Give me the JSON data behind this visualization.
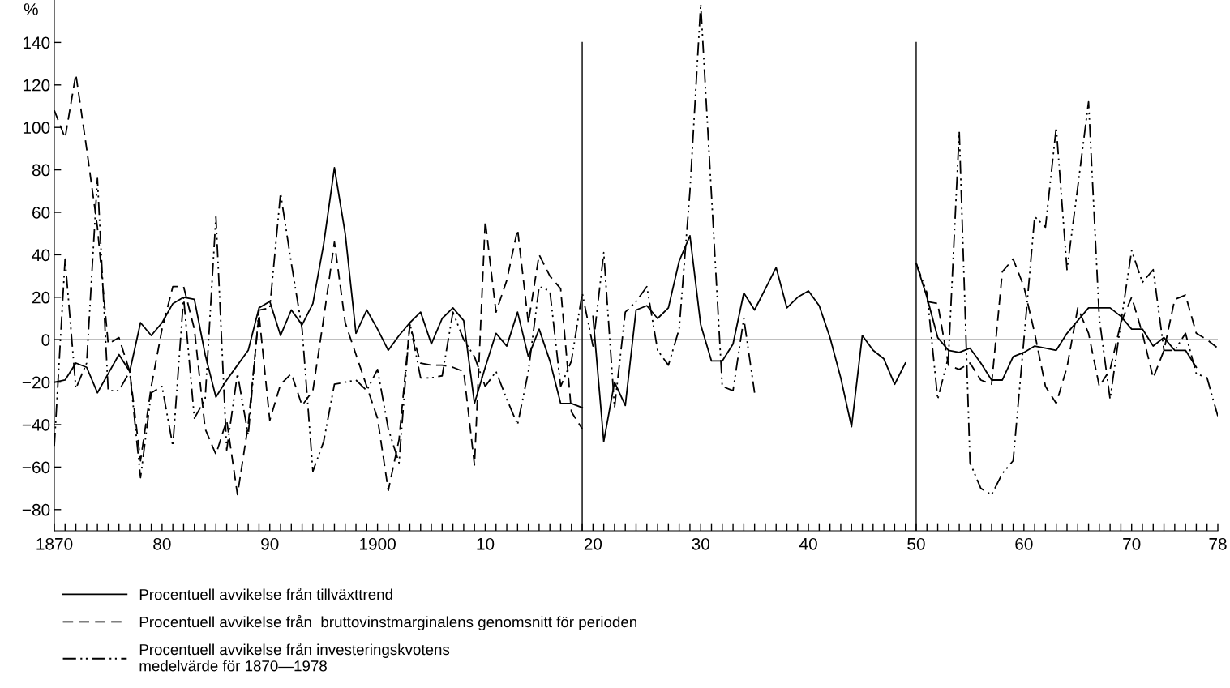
{
  "chart_data": {
    "type": "line",
    "ylabel": "%",
    "xlim": [
      1870,
      1978
    ],
    "ylim": [
      -90,
      160
    ],
    "yticks": [
      {
        "value": -80,
        "label": "−80"
      },
      {
        "value": -60,
        "label": "−60"
      },
      {
        "value": -40,
        "label": "−40"
      },
      {
        "value": -20,
        "label": "−20"
      },
      0,
      20,
      40,
      60,
      80,
      100,
      120,
      140
    ],
    "xticks": [
      1870,
      {
        "value": 1871,
        "label": null
      },
      {
        "value": 1872,
        "label": null
      },
      {
        "value": 1873,
        "label": null
      },
      {
        "value": 1874,
        "label": null
      },
      {
        "value": 1875,
        "label": null
      },
      {
        "value": 1876,
        "label": null
      },
      {
        "value": 1877,
        "label": null
      },
      {
        "value": 1878,
        "label": null
      },
      {
        "value": 1879,
        "label": null
      },
      {
        "value": 1880,
        "label": "80"
      },
      {
        "value": 1881,
        "label": null
      },
      {
        "value": 1882,
        "label": null
      },
      {
        "value": 1883,
        "label": null
      },
      {
        "value": 1884,
        "label": null
      },
      {
        "value": 1885,
        "label": null
      },
      {
        "value": 1886,
        "label": null
      },
      {
        "value": 1887,
        "label": null
      },
      {
        "value": 1888,
        "label": null
      },
      {
        "value": 1889,
        "label": null
      },
      {
        "value": 1890,
        "label": "90"
      },
      {
        "value": 1891,
        "label": null
      },
      {
        "value": 1892,
        "label": null
      },
      {
        "value": 1893,
        "label": null
      },
      {
        "value": 1894,
        "label": null
      },
      {
        "value": 1895,
        "label": null
      },
      {
        "value": 1896,
        "label": null
      },
      {
        "value": 1897,
        "label": null
      },
      {
        "value": 1898,
        "label": null
      },
      {
        "value": 1899,
        "label": null
      },
      1900,
      {
        "value": 1901,
        "label": null
      },
      {
        "value": 1902,
        "label": null
      },
      {
        "value": 1903,
        "label": null
      },
      {
        "value": 1904,
        "label": null
      },
      {
        "value": 1905,
        "label": null
      },
      {
        "value": 1906,
        "label": null
      },
      {
        "value": 1907,
        "label": null
      },
      {
        "value": 1908,
        "label": null
      },
      {
        "value": 1909,
        "label": null
      },
      {
        "value": 1910,
        "label": "10"
      },
      {
        "value": 1911,
        "label": null
      },
      {
        "value": 1912,
        "label": null
      },
      {
        "value": 1913,
        "label": null
      },
      {
        "value": 1914,
        "label": null
      },
      {
        "value": 1915,
        "label": null
      },
      {
        "value": 1916,
        "label": null
      },
      {
        "value": 1917,
        "label": null
      },
      {
        "value": 1918,
        "label": null
      },
      {
        "value": 1919,
        "label": null
      },
      {
        "value": 1920,
        "label": "20"
      },
      {
        "value": 1921,
        "label": null
      },
      {
        "value": 1922,
        "label": null
      },
      {
        "value": 1923,
        "label": null
      },
      {
        "value": 1924,
        "label": null
      },
      {
        "value": 1925,
        "label": null
      },
      {
        "value": 1926,
        "label": null
      },
      {
        "value": 1927,
        "label": null
      },
      {
        "value": 1928,
        "label": null
      },
      {
        "value": 1929,
        "label": null
      },
      {
        "value": 1930,
        "label": "30"
      },
      {
        "value": 1931,
        "label": null
      },
      {
        "value": 1932,
        "label": null
      },
      {
        "value": 1933,
        "label": null
      },
      {
        "value": 1934,
        "label": null
      },
      {
        "value": 1935,
        "label": null
      },
      {
        "value": 1936,
        "label": null
      },
      {
        "value": 1937,
        "label": null
      },
      {
        "value": 1938,
        "label": null
      },
      {
        "value": 1939,
        "label": null
      },
      {
        "value": 1940,
        "label": "40"
      },
      {
        "value": 1941,
        "label": null
      },
      {
        "value": 1942,
        "label": null
      },
      {
        "value": 1943,
        "label": null
      },
      {
        "value": 1944,
        "label": null
      },
      {
        "value": 1945,
        "label": null
      },
      {
        "value": 1946,
        "label": null
      },
      {
        "value": 1947,
        "label": null
      },
      {
        "value": 1948,
        "label": null
      },
      {
        "value": 1949,
        "label": null
      },
      {
        "value": 1950,
        "label": "50"
      },
      {
        "value": 1951,
        "label": null
      },
      {
        "value": 1952,
        "label": null
      },
      {
        "value": 1953,
        "label": null
      },
      {
        "value": 1954,
        "label": null
      },
      {
        "value": 1955,
        "label": null
      },
      {
        "value": 1956,
        "label": null
      },
      {
        "value": 1957,
        "label": null
      },
      {
        "value": 1958,
        "label": null
      },
      {
        "value": 1959,
        "label": null
      },
      {
        "value": 1960,
        "label": "60"
      },
      {
        "value": 1961,
        "label": null
      },
      {
        "value": 1962,
        "label": null
      },
      {
        "value": 1963,
        "label": null
      },
      {
        "value": 1964,
        "label": null
      },
      {
        "value": 1965,
        "label": null
      },
      {
        "value": 1966,
        "label": null
      },
      {
        "value": 1967,
        "label": null
      },
      {
        "value": 1968,
        "label": null
      },
      {
        "value": 1969,
        "label": null
      },
      {
        "value": 1970,
        "label": "70"
      },
      {
        "value": 1971,
        "label": null
      },
      {
        "value": 1972,
        "label": null
      },
      {
        "value": 1973,
        "label": null
      },
      {
        "value": 1974,
        "label": null
      },
      {
        "value": 1975,
        "label": null
      },
      {
        "value": 1976,
        "label": null
      },
      {
        "value": 1977,
        "label": null
      },
      {
        "value": 1978,
        "label": "78"
      }
    ],
    "grid": false,
    "legend": "bottom left",
    "marker": "none",
    "ref_lines": [
      {
        "axis": "y",
        "value": 0,
        "color": "#000000"
      },
      {
        "axis": "x",
        "value": 1919,
        "color": "#000000"
      },
      {
        "axis": "x",
        "value": 1950,
        "color": "#000000"
      }
    ],
    "series": [
      {
        "name": "Procentuell avvikelse från tillväxttrend",
        "color": "#000000",
        "line_style": "solid",
        "x": [
          1870,
          1871,
          1872,
          1873,
          1874,
          1875,
          1876,
          1877,
          1878,
          1879,
          1880,
          1881,
          1882,
          1883,
          1884,
          1885,
          1886,
          1887,
          1888,
          1889,
          1890,
          1891,
          1892,
          1893,
          1894,
          1895,
          1896,
          1897,
          1898,
          1899,
          1900,
          1901,
          1902,
          1903,
          1904,
          1905,
          1906,
          1907,
          1908,
          1909,
          1910,
          1911,
          1912,
          1913,
          1914,
          1915,
          1916,
          1917,
          1918,
          1919
        ],
        "values": [
          -20,
          -19,
          -11,
          -13,
          -25,
          -16,
          -7,
          -15,
          8,
          2,
          8,
          17,
          20,
          19,
          -7,
          -27,
          -19,
          -12,
          -5,
          15,
          18,
          2,
          14,
          7,
          17,
          45,
          81,
          50,
          3,
          14,
          5,
          -5,
          2,
          8,
          13,
          -2,
          10,
          15,
          9,
          -30,
          -13,
          3,
          -3,
          13,
          -8,
          5,
          -10,
          -30,
          -30,
          -32
        ]
      },
      {
        "name": "Procentuell avvikelse från  bruttovinstmarginalens genomsnitt för perioden",
        "color": "#000000",
        "line_style": "dashed",
        "x": [
          1870,
          1871,
          1872,
          1873,
          1874,
          1875,
          1876,
          1877,
          1878,
          1879,
          1880,
          1881,
          1882,
          1883,
          1884,
          1885,
          1886,
          1887,
          1888,
          1889,
          1890,
          1891,
          1892,
          1893,
          1894,
          1895,
          1896,
          1897,
          1898,
          1899,
          1900,
          1901,
          1902,
          1903,
          1904,
          1905,
          1906,
          1907,
          1908,
          1909,
          1910,
          1911,
          1912,
          1913,
          1914,
          1915,
          1916,
          1917,
          1918,
          1919
        ],
        "values": [
          108,
          95,
          125,
          90,
          53,
          -2,
          1,
          -15,
          -57,
          -22,
          5,
          25,
          25,
          5,
          -42,
          -54,
          -38,
          -73,
          -40,
          12,
          -38,
          -21,
          -16,
          -31,
          -24,
          10,
          46,
          8,
          -7,
          -22,
          -37,
          -71,
          -47,
          7,
          -11,
          -12,
          -12,
          -13,
          -15,
          -59,
          56,
          13,
          28,
          52,
          8,
          40,
          30,
          24,
          -34,
          -42
        ]
      },
      {
        "name": "Procentuell avvikelse från investeringskvotens\nmedelvärde för 1870—1978",
        "color": "#000000",
        "line_style": "dashdot",
        "x": [
          1870,
          1871,
          1872,
          1873,
          1874,
          1875,
          1876,
          1877,
          1878,
          1879,
          1880,
          1881,
          1882,
          1883,
          1884,
          1885,
          1886,
          1887,
          1888,
          1889,
          1890,
          1891,
          1892,
          1893,
          1894,
          1895,
          1896,
          1897,
          1898,
          1899,
          1900,
          1901,
          1902,
          1903,
          1904,
          1905,
          1906,
          1907,
          1908,
          1909,
          1910,
          1911,
          1912,
          1913,
          1914,
          1915,
          1916,
          1917,
          1918,
          1919,
          1920,
          1921,
          1922,
          1923,
          1924,
          1925,
          1926,
          1927,
          1928,
          1929,
          1930,
          1931,
          1932,
          1933,
          1934,
          1935
        ],
        "values": [
          -50,
          38,
          -23,
          -11,
          76,
          -24,
          -24,
          -15,
          -65,
          -25,
          -22,
          -50,
          20,
          -37,
          -28,
          58,
          -52,
          -16,
          -45,
          14,
          15,
          69,
          36,
          5,
          -62,
          -48,
          -21,
          -20,
          -19,
          -24,
          -14,
          -42,
          -58,
          8,
          -18,
          -18,
          -17,
          13,
          0,
          -8,
          -22,
          -15,
          -28,
          -40,
          -15,
          25,
          23,
          -22,
          -10,
          22,
          -3,
          41,
          -32,
          13,
          18,
          25,
          -5,
          -12,
          5,
          70,
          158,
          68,
          -22,
          -24,
          10,
          -25
        ]
      },
      {
        "color": "#000000",
        "line_style": "solid",
        "x": [
          1920,
          1921,
          1922,
          1923,
          1924,
          1925,
          1926,
          1927,
          1928,
          1929,
          1930,
          1931,
          1932,
          1933,
          1934,
          1935,
          1936,
          1937,
          1938,
          1939,
          1940,
          1941,
          1942,
          1943,
          1944,
          1945,
          1946,
          1947,
          1948,
          1949
        ],
        "values": [
          11,
          -48,
          -20,
          -31,
          14,
          16,
          10,
          15,
          37,
          49,
          7,
          -10,
          -10,
          -2,
          22,
          14,
          24,
          34,
          15,
          20,
          23,
          16,
          1,
          -18,
          -41,
          2,
          -5,
          -9,
          -21,
          -11
        ]
      },
      {
        "color": "#000000",
        "line_style": "solid",
        "x": [
          1950,
          1951,
          1952,
          1953,
          1954,
          1955,
          1956,
          1957,
          1958,
          1959,
          1960,
          1961,
          1962,
          1963,
          1964,
          1965,
          1966,
          1967,
          1968,
          1969,
          1970,
          1971,
          1972,
          1973,
          1974,
          1975,
          1976
        ],
        "values": [
          36,
          20,
          1,
          -5,
          -6,
          -4,
          -11,
          -19,
          -19,
          -8,
          -6,
          -3,
          -4,
          -5,
          3,
          9,
          15,
          15,
          15,
          11,
          5,
          5,
          -3,
          1,
          -5,
          -5,
          -13
        ]
      },
      {
        "color": "#000000",
        "line_style": "dashed",
        "x": [
          1951,
          1952,
          1953,
          1954,
          1955,
          1956,
          1957,
          1958,
          1959,
          1960,
          1961,
          1962,
          1963,
          1964,
          1965,
          1966,
          1967,
          1968,
          1969,
          1970,
          1971,
          1972,
          1973,
          1974,
          1975,
          1976,
          1977,
          1978
        ],
        "values": [
          18,
          17,
          -12,
          -14,
          -11,
          -19,
          -21,
          32,
          38,
          25,
          3,
          -22,
          -30,
          -13,
          15,
          3,
          -22,
          -14,
          8,
          20,
          3,
          -18,
          -5,
          19,
          21,
          3,
          0,
          -4
        ]
      },
      {
        "color": "#000000",
        "line_style": "dashdot",
        "x": [
          1950,
          1951,
          1952,
          1953,
          1954,
          1955,
          1956,
          1957,
          1958,
          1959,
          1960,
          1961,
          1962,
          1963,
          1964,
          1965,
          1966,
          1967,
          1968,
          1969,
          1970,
          1971,
          1972,
          1973,
          1974,
          1975,
          1976,
          1977,
          1978
        ],
        "values": [
          36,
          22,
          -28,
          -8,
          98,
          -58,
          -70,
          -73,
          -63,
          -57,
          0,
          58,
          53,
          100,
          33,
          72,
          112,
          10,
          -28,
          8,
          42,
          27,
          33,
          -5,
          -5,
          3,
          -16,
          -18,
          -36
        ]
      }
    ]
  }
}
